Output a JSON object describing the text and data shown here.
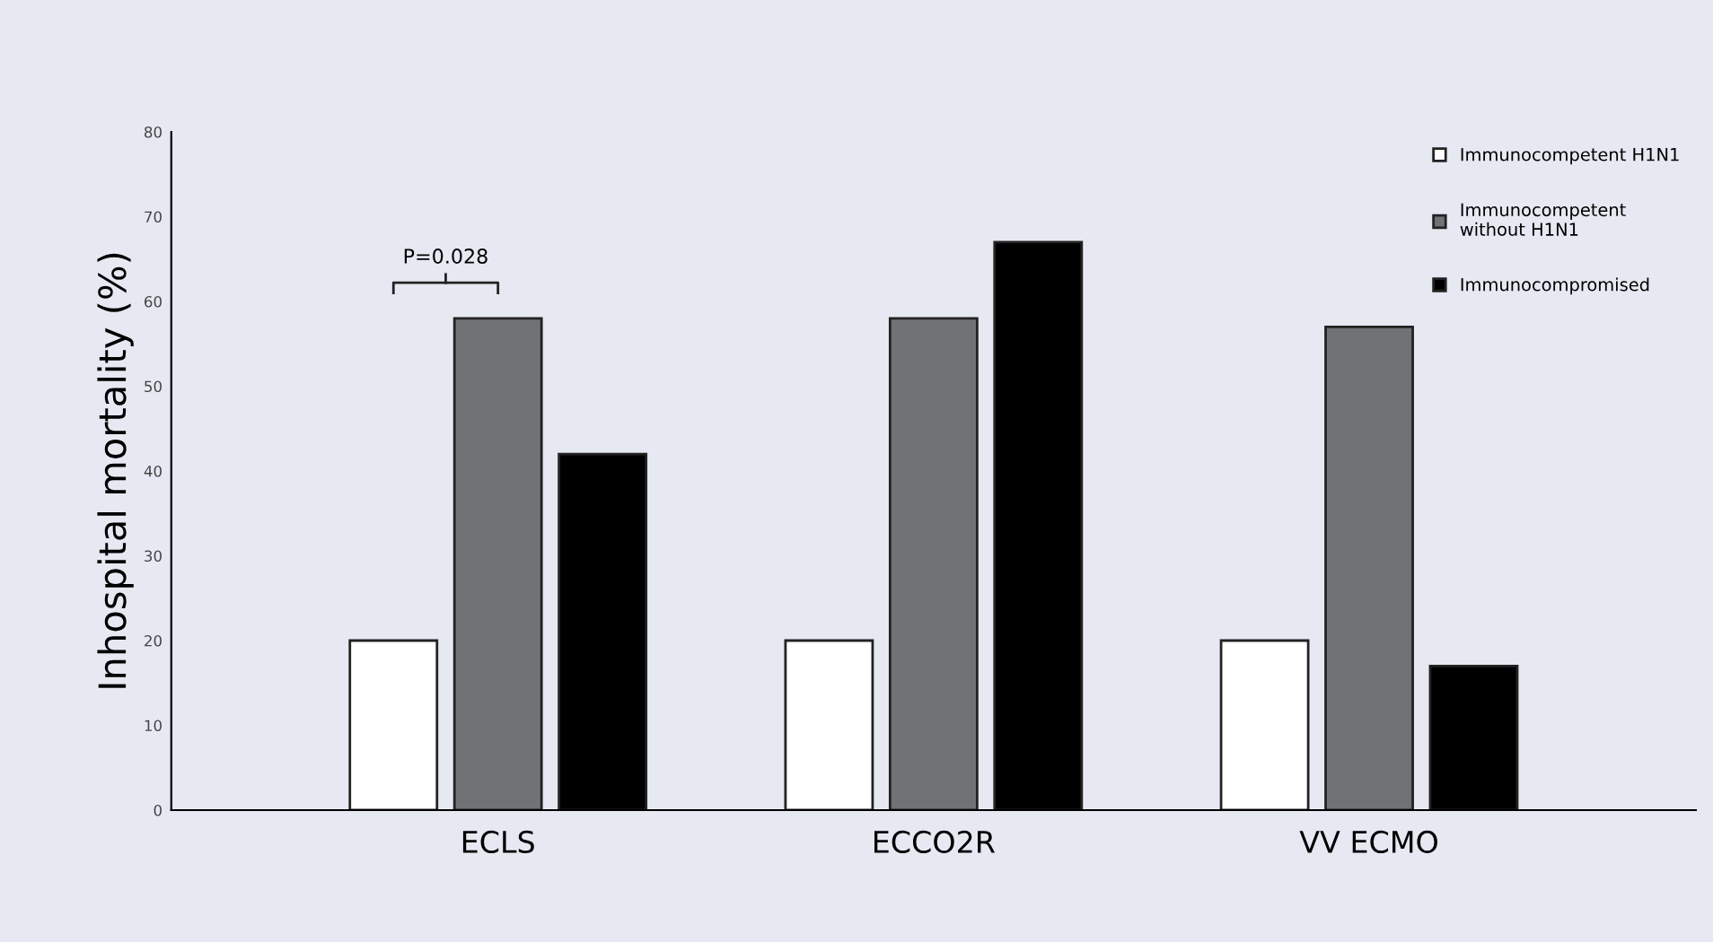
{
  "chart_data": {
    "type": "bar",
    "ylabel": "Inhospital mortality (%)",
    "categories": [
      "ECLS",
      "ECCO2R",
      "VV ECMO"
    ],
    "series": [
      {
        "name": "Immunocompetent H1N1",
        "color": "#ffffff",
        "values": [
          20,
          20,
          20
        ]
      },
      {
        "name": "Immunocompetent\nwithout H1N1",
        "color": "#717276",
        "values": [
          58,
          58,
          57
        ]
      },
      {
        "name": "Immunocompromised",
        "color": "#000000",
        "values": [
          42,
          67,
          17
        ]
      }
    ],
    "ylim": [
      0,
      80
    ],
    "yticks": [
      0,
      10,
      20,
      30,
      40,
      50,
      60,
      70,
      80
    ],
    "grid": false,
    "legend": "top right",
    "annotations": [
      "P=0.028"
    ]
  }
}
